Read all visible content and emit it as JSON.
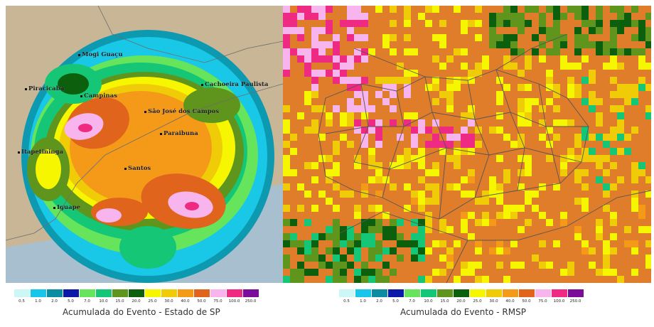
{
  "left_map": {
    "caption": "Acumulada do Evento - Estado de SP",
    "cities": [
      "Mogi Guaçu",
      "Piracicaba",
      "Campinas",
      "Cachoeira Paulista",
      "São José dos Campos",
      "Paraibuna",
      "Itapetininga",
      "Santos",
      "Iguape"
    ]
  },
  "right_map": {
    "caption": "Acumulada do Evento - RMSP"
  },
  "legend": {
    "values": [
      "0.5",
      "1.0",
      "2.0",
      "5.0",
      "7.0",
      "10.0",
      "15.0",
      "20.0",
      "25.0",
      "30.0",
      "40.0",
      "50.0",
      "75.0",
      "100.0",
      "250.0"
    ],
    "colors": [
      "#cdf6f6",
      "#17c6ea",
      "#0b8ca0",
      "#0a19a8",
      "#66e45c",
      "#14c675",
      "#5f951d",
      "#0c5f0c",
      "#f6f600",
      "#f0cc08",
      "#f59a18",
      "#e0641c",
      "#f8b4ec",
      "#ee2a82",
      "#7c0c9a"
    ]
  }
}
